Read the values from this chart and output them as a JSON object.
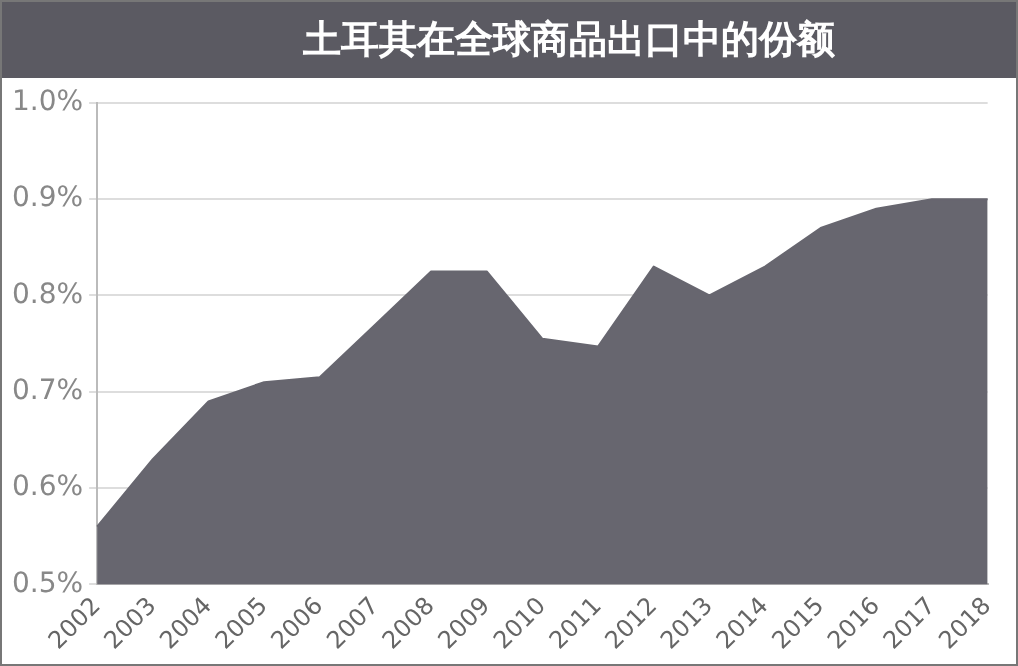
{
  "chart_data": {
    "type": "area",
    "title": "土耳其在全球商品出口中的份额",
    "categories": [
      "2002",
      "2003",
      "2004",
      "2005",
      "2006",
      "2007",
      "2008",
      "2009",
      "2010",
      "2011",
      "2012",
      "2013",
      "2014",
      "2015",
      "2016",
      "2017",
      "2018"
    ],
    "series": [
      {
        "color": "#67666f",
        "values": [
          0.56,
          0.63,
          0.69,
          0.71,
          0.715,
          0.77,
          0.825,
          0.825,
          0.755,
          0.747,
          0.83,
          0.8,
          0.83,
          0.87,
          0.89,
          0.9,
          0.9
        ]
      }
    ],
    "ylim": [
      0.5,
      1.0
    ],
    "yticks": [
      {
        "value": 0.5,
        "label": "0.5%"
      },
      {
        "value": 0.6,
        "label": "0.6%"
      },
      {
        "value": 0.7,
        "label": "0.7%"
      },
      {
        "value": 0.8,
        "label": "0.8%"
      },
      {
        "value": 0.9,
        "label": "0.9%"
      },
      {
        "value": 1.0,
        "label": "1.0%"
      }
    ],
    "grid": "y",
    "legend": false
  }
}
